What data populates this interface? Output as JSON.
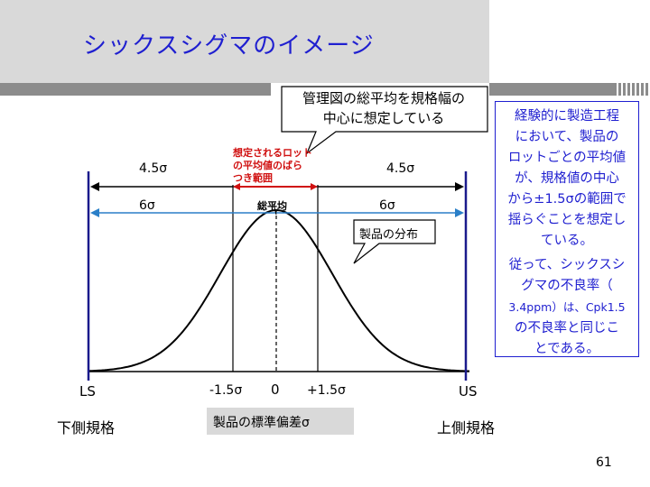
{
  "slide": {
    "title": "シックスシグマのイメージ",
    "page_number": "61"
  },
  "callouts": {
    "center_note": "管理図の総平均を規格幅の\n中心に想定している",
    "lot_range": "想定されるロット\nの平均値のばら\nつき範囲",
    "grand_mean": "総平均",
    "distribution": "製品の分布"
  },
  "dimensions": {
    "left_45": "4.5σ",
    "right_45": "4.5σ",
    "left_6": "6σ",
    "right_6": "6σ"
  },
  "axis": {
    "ls": "LS",
    "us": "US",
    "minus15": "-1.5σ",
    "zero": "0",
    "plus15": "+1.5σ",
    "lower_spec": "下側規格",
    "upper_spec": "上側規格",
    "std_dev": "製品の標準偏差σ"
  },
  "side_note": {
    "para1": "経験的に製造工程\nにおいて、製品の\nロットごとの平均値\nが、規格値の中心\nから±1.5σの範囲で\n揺らぐことを想定し\nている。",
    "para2_a": "従って、シックスシ\nグマの不良率（",
    "para2_b": "3.4ppm）は、Cpk1.5",
    "para2_c": "の不良率と同じこ\nとである。"
  },
  "colors": {
    "title": "#1f1fd0",
    "spec_line": "#1a1a8c",
    "dim_line": "#2a7fc8",
    "lot_text": "#d01010",
    "band": "#d9d9d9",
    "bar": "#8c8c8c"
  }
}
